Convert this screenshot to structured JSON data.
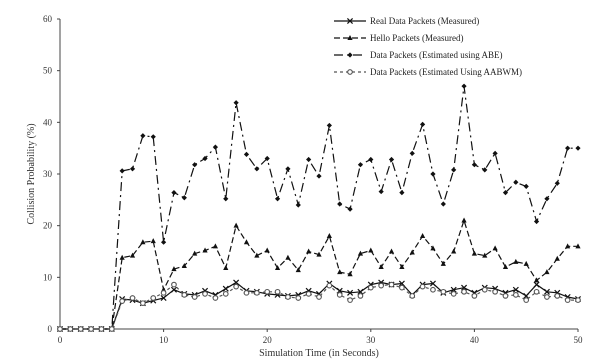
{
  "chart_data": {
    "type": "line",
    "title": "",
    "xlabel": "Simulation Time (in Seconds)",
    "ylabel": "Collision Probability (%)",
    "xlim": [
      0,
      50
    ],
    "ylim": [
      0,
      60
    ],
    "xticks": [
      0,
      10,
      20,
      30,
      40,
      50
    ],
    "yticks": [
      0,
      10,
      20,
      30,
      40,
      50,
      60
    ],
    "grid": false,
    "legend_position": "top-right",
    "x": [
      0,
      1,
      2,
      3,
      4,
      5,
      6,
      7,
      8,
      9,
      10,
      11,
      12,
      13,
      14,
      15,
      16,
      17,
      18,
      19,
      20,
      21,
      22,
      23,
      24,
      25,
      26,
      27,
      28,
      29,
      30,
      31,
      32,
      33,
      34,
      35,
      36,
      37,
      38,
      39,
      40,
      41,
      42,
      43,
      44,
      45,
      46,
      47,
      48,
      49,
      50
    ],
    "series": [
      {
        "name": "Real Data Packets (Measured)",
        "color": "#111111",
        "dash": "",
        "marker": "cross",
        "values": [
          0,
          0,
          0,
          0,
          0,
          0,
          5.8,
          5.6,
          5,
          5.5,
          6,
          7.6,
          6.8,
          6.6,
          7.4,
          6.6,
          7.8,
          9,
          7.4,
          7.2,
          6.8,
          6.6,
          6.4,
          6.6,
          7.4,
          6.8,
          8.8,
          7.4,
          7,
          7.2,
          8.6,
          9,
          8.6,
          8.8,
          6.6,
          8.6,
          8.8,
          7,
          7.6,
          8,
          7,
          8,
          7.8,
          7,
          7.6,
          6.4,
          8.6,
          7.2,
          7,
          6.2,
          5.8
        ]
      },
      {
        "name": "Hello Packets (Measured)",
        "color": "#111111",
        "dash": "6,3",
        "marker": "triangle",
        "values": [
          0,
          0,
          0,
          0,
          0,
          0,
          13.8,
          14.2,
          16.8,
          17,
          7.6,
          11.6,
          12.2,
          14.6,
          15.2,
          16,
          11.8,
          20,
          16.8,
          14.2,
          15.2,
          11.8,
          13.8,
          11.4,
          15,
          14.4,
          18,
          11,
          10.6,
          14.6,
          15.2,
          12,
          15,
          12,
          14.8,
          18,
          15.6,
          12.6,
          15,
          21,
          14.6,
          14.2,
          15.6,
          12,
          13,
          12.6,
          9.4,
          11,
          13.6,
          16,
          16
        ]
      },
      {
        "name": "Data Packets (Estimated using ABE)",
        "color": "#111111",
        "dash": "9,4,2,4",
        "marker": "diamond",
        "values": [
          0,
          0,
          0,
          0,
          0,
          0,
          30.6,
          31,
          37.4,
          37.2,
          16.8,
          26.4,
          25.4,
          31.8,
          33,
          35.2,
          25.2,
          43.8,
          33.8,
          31,
          33,
          25.2,
          31,
          24,
          32.8,
          29.6,
          39.4,
          24.2,
          23.2,
          31.8,
          32.8,
          26.6,
          32.8,
          26.4,
          34,
          39.6,
          30,
          24.2,
          30.8,
          47,
          31.8,
          30.8,
          34,
          26.4,
          28.4,
          27.6,
          20.8,
          25.2,
          28.2,
          35,
          35
        ]
      },
      {
        "name": "Data Packets (Estimated Using AABWM)",
        "color": "#555555",
        "dash": "3,3",
        "marker": "circle",
        "values": [
          0,
          0,
          0,
          0,
          0,
          0,
          5.4,
          6,
          5,
          6,
          7,
          8.6,
          6.6,
          6.2,
          6.8,
          6,
          6.8,
          8.2,
          7,
          7,
          7.2,
          7.2,
          6.2,
          6,
          6.8,
          6.2,
          8.4,
          6.6,
          5.6,
          6.4,
          8,
          8.4,
          8.6,
          8,
          6.4,
          8.2,
          7.6,
          7.2,
          6.8,
          7.2,
          6.4,
          7.6,
          7.2,
          6.4,
          6.6,
          5.6,
          7.2,
          6.2,
          6.4,
          5.6,
          5.6
        ]
      }
    ]
  }
}
